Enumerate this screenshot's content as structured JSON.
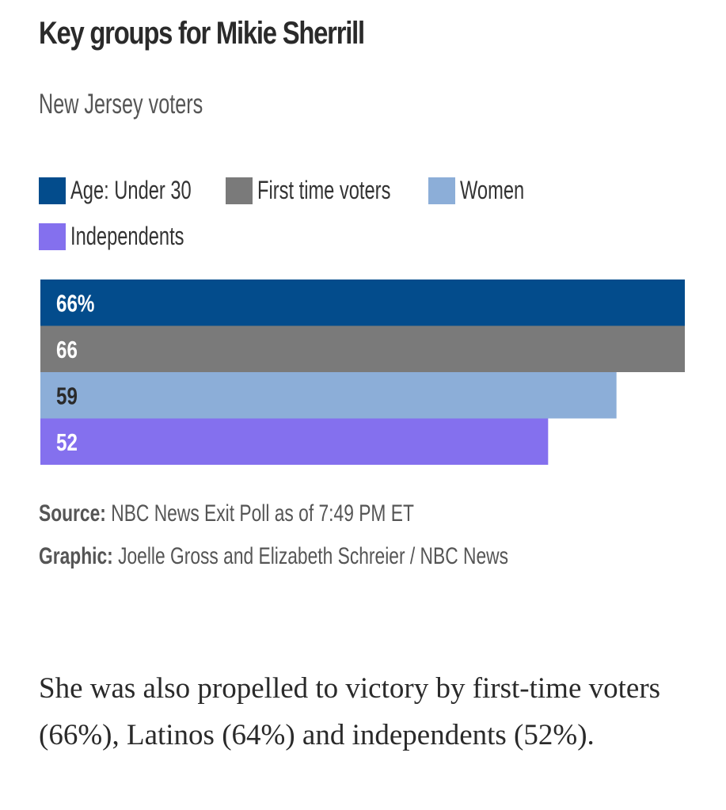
{
  "header": {
    "title": "Key groups for Mikie Sherrill",
    "subtitle": "New Jersey voters"
  },
  "chart_data": {
    "type": "bar",
    "orientation": "horizontal",
    "title": "Key groups for Mikie Sherrill",
    "subtitle": "New Jersey voters",
    "categories": [
      "Age: Under 30",
      "First time voters",
      "Women",
      "Independents"
    ],
    "values": [
      66,
      66,
      59,
      52
    ],
    "value_labels": [
      "66%",
      "66",
      "59",
      "52"
    ],
    "colors": [
      "#034c8c",
      "#7a7a7a",
      "#8caed8",
      "#8470ee"
    ],
    "label_colors": [
      "#ffffff",
      "#ffffff",
      "#2a2a2a",
      "#ffffff"
    ],
    "xlim": [
      0,
      66
    ],
    "xlabel": "",
    "ylabel": "",
    "grid": false,
    "legend": "top"
  },
  "legend": [
    {
      "label": "Age: Under 30",
      "color": "#034c8c"
    },
    {
      "label": "First time voters",
      "color": "#7a7a7a"
    },
    {
      "label": "Women",
      "color": "#8caed8"
    },
    {
      "label": "Independents",
      "color": "#8470ee"
    }
  ],
  "footer": {
    "source_label": "Source:",
    "source_text": " NBC News Exit Poll as of 7:49 PM ET",
    "graphic_label": "Graphic:",
    "graphic_text": " Joelle Gross and Elizabeth Schreier / NBC News"
  },
  "article": {
    "paragraph": "She was also propelled to victory by first-time voters (66%), Latinos (64%) and independents (52%)."
  }
}
